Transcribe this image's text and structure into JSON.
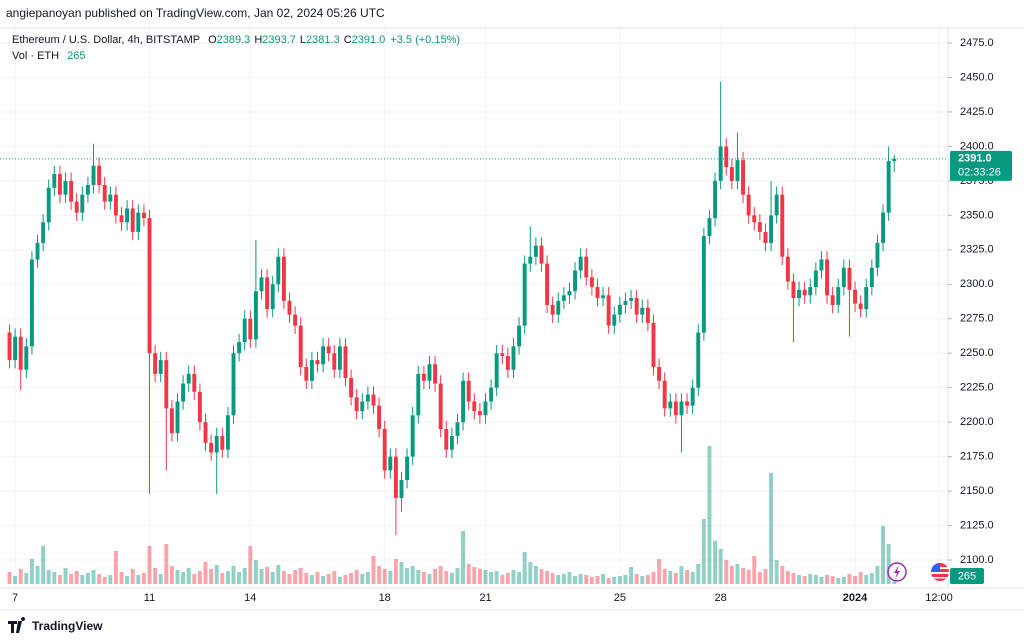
{
  "header": {
    "byline": "angiepanoyan published on TradingView.com, Jan 02, 2024 05:26 UTC"
  },
  "footer": {
    "brand": "TradingView"
  },
  "chart_data": {
    "type": "candlestick",
    "symbol": "Ethereum / U.S. Dollar, 4h, BITSTAMP",
    "ohlc_legend": [
      {
        "key": "O",
        "text": "2389.3"
      },
      {
        "key": "H",
        "text": "2393.7"
      },
      {
        "key": "L",
        "text": "2381.3"
      },
      {
        "key": "C",
        "text": "2391.0"
      }
    ],
    "change": "+3.5 (+0.15%)",
    "volume_legend": "Vol · ETH",
    "last_price_label": "2391.0",
    "countdown": "02:33:26",
    "up_color": "#089981",
    "down_color": "#f23645",
    "volume_up_color": "rgba(8,153,129,0.45)",
    "volume_down_color": "rgba(242,54,69,0.45)",
    "grid": true,
    "xlim": [
      -1.7,
      167.6
    ],
    "ylim": [
      2079.7,
      2485.9
    ],
    "xticks": [
      {
        "value": 1,
        "label": "7"
      },
      {
        "value": 25,
        "label": "11"
      },
      {
        "value": 43,
        "label": "14"
      },
      {
        "value": 67,
        "label": "18"
      },
      {
        "value": 85,
        "label": "21"
      },
      {
        "value": 109,
        "label": "25"
      },
      {
        "value": 127,
        "label": "28"
      },
      {
        "value": 151,
        "label": "2024"
      },
      {
        "value": 166,
        "label": "12:00"
      }
    ],
    "yticks": [
      {
        "value": 2100,
        "label": "2100.0"
      },
      {
        "value": 2125,
        "label": "2125.0"
      },
      {
        "value": 2150,
        "label": "2150.0"
      },
      {
        "value": 2175,
        "label": "2175.0"
      },
      {
        "value": 2200,
        "label": "2200.0"
      },
      {
        "value": 2225,
        "label": "2225.0"
      },
      {
        "value": 2250,
        "label": "2250.0"
      },
      {
        "value": 2275,
        "label": "2275.0"
      },
      {
        "value": 2300,
        "label": "2300.0"
      },
      {
        "value": 2325,
        "label": "2325.0"
      },
      {
        "value": 2350,
        "label": "2350.0"
      },
      {
        "value": 2375,
        "label": "2375.0"
      },
      {
        "value": 2400,
        "label": "2400.0"
      },
      {
        "value": 2425,
        "label": "2425.0"
      },
      {
        "value": 2450,
        "label": "2450.0"
      },
      {
        "value": 2475,
        "label": "2475.0"
      }
    ],
    "open": [
      2265,
      2245,
      2262,
      2238,
      2255,
      2318,
      2330,
      2345,
      2370,
      2380,
      2365,
      2375,
      2360,
      2352,
      2365,
      2372,
      2386,
      2372,
      2360,
      2365,
      2350,
      2345,
      2355,
      2338,
      2352,
      2348,
      2250,
      2235,
      2245,
      2210,
      2192,
      2215,
      2228,
      2235,
      2222,
      2200,
      2185,
      2178,
      2190,
      2180,
      2205,
      2250,
      2258,
      2275,
      2260,
      2295,
      2305,
      2282,
      2300,
      2320,
      2288,
      2278,
      2270,
      2240,
      2230,
      2245,
      2242,
      2255,
      2250,
      2238,
      2255,
      2232,
      2218,
      2208,
      2215,
      2220,
      2212,
      2195,
      2165,
      2175,
      2145,
      2158,
      2175,
      2205,
      2235,
      2230,
      2242,
      2228,
      2195,
      2180,
      2190,
      2200,
      2230,
      2215,
      2208,
      2205,
      2215,
      2225,
      2250,
      2248,
      2238,
      2255,
      2270,
      2315,
      2320,
      2328,
      2315,
      2285,
      2278,
      2288,
      2292,
      2295,
      2310,
      2320,
      2305,
      2298,
      2290,
      2292,
      2270,
      2278,
      2285,
      2288,
      2290,
      2278,
      2283,
      2272,
      2240,
      2230,
      2210,
      2215,
      2205,
      2215,
      2212,
      2225,
      2265,
      2335,
      2348,
      2375,
      2400,
      2385,
      2375,
      2390,
      2365,
      2350,
      2345,
      2338,
      2330,
      2350,
      2365,
      2320,
      2302,
      2290,
      2296,
      2292,
      2298,
      2310,
      2318,
      2292,
      2285,
      2298,
      2312,
      2296,
      2286,
      2282,
      2298,
      2312,
      2330,
      2352,
      2389.3
    ],
    "high": [
      2271,
      2268,
      2268,
      2261,
      2324,
      2336,
      2351,
      2376,
      2386,
      2386,
      2381,
      2381,
      2366,
      2371,
      2378,
      2402,
      2392,
      2378,
      2371,
      2371,
      2356,
      2361,
      2361,
      2358,
      2358,
      2354,
      2256,
      2251,
      2251,
      2216,
      2221,
      2234,
      2241,
      2241,
      2228,
      2206,
      2191,
      2196,
      2196,
      2211,
      2256,
      2264,
      2281,
      2281,
      2332,
      2311,
      2311,
      2306,
      2326,
      2326,
      2294,
      2284,
      2276,
      2246,
      2251,
      2251,
      2261,
      2261,
      2256,
      2261,
      2261,
      2238,
      2224,
      2221,
      2226,
      2226,
      2218,
      2201,
      2181,
      2181,
      2164,
      2181,
      2211,
      2241,
      2241,
      2248,
      2248,
      2234,
      2201,
      2196,
      2206,
      2236,
      2236,
      2221,
      2214,
      2221,
      2231,
      2256,
      2256,
      2254,
      2261,
      2276,
      2321,
      2342,
      2334,
      2334,
      2321,
      2291,
      2294,
      2298,
      2301,
      2316,
      2326,
      2326,
      2311,
      2304,
      2298,
      2298,
      2284,
      2291,
      2294,
      2296,
      2296,
      2289,
      2289,
      2278,
      2246,
      2236,
      2221,
      2221,
      2221,
      2221,
      2231,
      2271,
      2341,
      2354,
      2381,
      2447,
      2406,
      2391,
      2410,
      2396,
      2371,
      2356,
      2351,
      2344,
      2375,
      2371,
      2371,
      2326,
      2308,
      2302,
      2302,
      2304,
      2316,
      2324,
      2324,
      2298,
      2304,
      2318,
      2318,
      2302,
      2292,
      2304,
      2318,
      2336,
      2358,
      2400,
      2393.7
    ],
    "low": [
      2239,
      2239,
      2223,
      2232,
      2249,
      2312,
      2324,
      2339,
      2364,
      2359,
      2359,
      2354,
      2346,
      2346,
      2359,
      2366,
      2366,
      2354,
      2354,
      2344,
      2339,
      2339,
      2332,
      2332,
      2342,
      2148,
      2229,
      2229,
      2165,
      2186,
      2186,
      2209,
      2222,
      2216,
      2194,
      2179,
      2172,
      2148,
      2174,
      2174,
      2199,
      2244,
      2252,
      2254,
      2254,
      2289,
      2276,
      2276,
      2294,
      2282,
      2272,
      2264,
      2234,
      2224,
      2224,
      2236,
      2236,
      2244,
      2232,
      2232,
      2226,
      2212,
      2202,
      2202,
      2209,
      2206,
      2189,
      2159,
      2159,
      2118,
      2135,
      2152,
      2169,
      2199,
      2224,
      2224,
      2222,
      2189,
      2174,
      2174,
      2184,
      2194,
      2209,
      2202,
      2199,
      2199,
      2209,
      2219,
      2242,
      2232,
      2232,
      2249,
      2264,
      2309,
      2314,
      2309,
      2279,
      2272,
      2272,
      2282,
      2286,
      2289,
      2304,
      2299,
      2292,
      2284,
      2284,
      2264,
      2264,
      2272,
      2279,
      2282,
      2272,
      2272,
      2266,
      2234,
      2224,
      2204,
      2204,
      2199,
      2178,
      2206,
      2206,
      2219,
      2259,
      2329,
      2342,
      2369,
      2379,
      2369,
      2369,
      2359,
      2344,
      2339,
      2332,
      2324,
      2324,
      2344,
      2314,
      2296,
      2258,
      2284,
      2286,
      2286,
      2292,
      2304,
      2286,
      2279,
      2279,
      2292,
      2262,
      2280,
      2276,
      2276,
      2292,
      2306,
      2324,
      2346,
      2381.3
    ],
    "close": [
      2245,
      2262,
      2238,
      2255,
      2318,
      2330,
      2345,
      2370,
      2380,
      2365,
      2375,
      2360,
      2352,
      2365,
      2372,
      2386,
      2372,
      2360,
      2365,
      2350,
      2345,
      2355,
      2338,
      2352,
      2348,
      2250,
      2235,
      2245,
      2210,
      2192,
      2215,
      2228,
      2235,
      2222,
      2200,
      2185,
      2178,
      2190,
      2180,
      2205,
      2250,
      2258,
      2275,
      2260,
      2295,
      2305,
      2282,
      2300,
      2320,
      2288,
      2278,
      2270,
      2240,
      2230,
      2245,
      2242,
      2255,
      2250,
      2238,
      2255,
      2232,
      2218,
      2208,
      2215,
      2220,
      2212,
      2195,
      2165,
      2175,
      2145,
      2158,
      2175,
      2205,
      2235,
      2230,
      2242,
      2228,
      2195,
      2180,
      2190,
      2200,
      2230,
      2215,
      2208,
      2205,
      2215,
      2225,
      2250,
      2248,
      2238,
      2255,
      2270,
      2315,
      2320,
      2328,
      2315,
      2285,
      2278,
      2288,
      2292,
      2295,
      2310,
      2320,
      2305,
      2298,
      2290,
      2292,
      2270,
      2278,
      2285,
      2288,
      2290,
      2278,
      2283,
      2272,
      2240,
      2230,
      2210,
      2215,
      2205,
      2215,
      2212,
      2225,
      2265,
      2335,
      2348,
      2375,
      2400,
      2385,
      2375,
      2390,
      2365,
      2350,
      2345,
      2338,
      2330,
      2350,
      2365,
      2320,
      2302,
      2290,
      2296,
      2292,
      2298,
      2310,
      2318,
      2292,
      2285,
      2298,
      2312,
      2296,
      2286,
      2282,
      2298,
      2312,
      2330,
      2352,
      2389.3,
      2391
    ],
    "volume": [
      1200,
      800,
      1500,
      1100,
      2500,
      1800,
      3800,
      1400,
      1200,
      900,
      1600,
      1000,
      1300,
      900,
      1100,
      1400,
      1000,
      700,
      900,
      3300,
      1200,
      800,
      1500,
      900,
      1100,
      3800,
      1600,
      1000,
      4000,
      1800,
      1400,
      1200,
      1600,
      1000,
      1300,
      2200,
      1500,
      1900,
      1100,
      1300,
      1800,
      1200,
      1600,
      3800,
      2400,
      1500,
      1700,
      1200,
      1900,
      1300,
      1000,
      1400,
      1600,
      1100,
      900,
      1200,
      800,
      1000,
      1300,
      700,
      900,
      1100,
      1400,
      1000,
      1200,
      2800,
      1800,
      1500,
      1300,
      2500,
      2200,
      1600,
      1800,
      1400,
      1200,
      1000,
      1500,
      1800,
      1300,
      1100,
      1600,
      5300,
      2000,
      1700,
      1500,
      1400,
      1200,
      1300,
      900,
      1100,
      1400,
      1200,
      3200,
      2200,
      1800,
      1500,
      1300,
      1100,
      900,
      1000,
      1200,
      800,
      1000,
      900,
      700,
      800,
      1000,
      600,
      700,
      800,
      900,
      1700,
      1000,
      800,
      900,
      1200,
      2500,
      1500,
      1300,
      1100,
      1800,
      1400,
      1200,
      2000,
      6500,
      13800,
      4300,
      3500,
      2400,
      1800,
      2000,
      1600,
      1400,
      2800,
      1200,
      1500,
      11100,
      2400,
      1800,
      1300,
      1100,
      900,
      800,
      1000,
      900,
      700,
      900,
      800,
      600,
      700,
      1000,
      800,
      1200,
      900,
      1100,
      1800,
      5800,
      4000,
      265
    ]
  }
}
